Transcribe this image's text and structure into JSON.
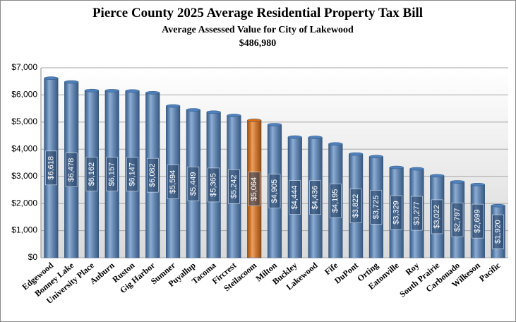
{
  "chart_data": {
    "type": "bar",
    "title": "Pierce County 2025 Average Residential Property Tax Bill",
    "subtitle": "Average Assessed Value for City of Lakewood",
    "subtitle_value": "$486,980",
    "categories": [
      "Edgewood",
      "Bonney Lake",
      "University Place",
      "Auburn",
      "Ruston",
      "Gig Harbor",
      "Sumner",
      "Puyallup",
      "Tacoma",
      "Fircrest",
      "Steilacoom",
      "Milton",
      "Buckley",
      "Lakewood",
      "Fife",
      "DuPont",
      "Orting",
      "Eatonville",
      "Roy",
      "South Prairie",
      "Carbonado",
      "Wilkeson",
      "Pacific"
    ],
    "values": [
      6618,
      6478,
      6162,
      6157,
      6147,
      6082,
      5594,
      5449,
      5365,
      5242,
      5064,
      4905,
      4444,
      4436,
      4195,
      3822,
      3725,
      3329,
      3277,
      3022,
      2797,
      2699,
      1920
    ],
    "value_labels": [
      "$6,618",
      "$6,478",
      "$6,162",
      "$6,157",
      "$6,147",
      "$6,082",
      "$5,594",
      "$5,449",
      "$5,365",
      "$5,242",
      "$5,064",
      "$4,905",
      "$4,444",
      "$4,436",
      "$4,195",
      "$3,822",
      "$3,725",
      "$3,329",
      "$3,277",
      "$3,022",
      "$2,797",
      "$2,699",
      "$1,920"
    ],
    "colors": [
      "#4f81bd",
      "#4f81bd",
      "#4f81bd",
      "#4f81bd",
      "#4f81bd",
      "#4f81bd",
      "#4f81bd",
      "#4f81bd",
      "#4f81bd",
      "#4f81bd",
      "#e46c0a",
      "#4f81bd",
      "#4f81bd",
      "#4f81bd",
      "#4f81bd",
      "#4f81bd",
      "#4f81bd",
      "#4f81bd",
      "#4f81bd",
      "#4f81bd",
      "#4f81bd",
      "#4f81bd",
      "#4f81bd"
    ],
    "ylim": [
      0,
      7000
    ],
    "yticks": [
      {
        "value": 0,
        "label": "$0"
      },
      {
        "value": 1000,
        "label": "$1,000"
      },
      {
        "value": 2000,
        "label": "$2,000"
      },
      {
        "value": 3000,
        "label": "$3,000"
      },
      {
        "value": 4000,
        "label": "$4,000"
      },
      {
        "value": 5000,
        "label": "$5,000"
      },
      {
        "value": 6000,
        "label": "$6,000"
      },
      {
        "value": 7000,
        "label": "$7,000"
      }
    ],
    "grid": true
  }
}
